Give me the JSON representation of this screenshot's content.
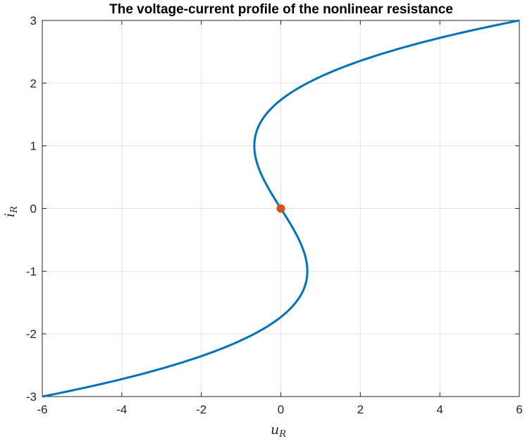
{
  "chart_data": {
    "type": "line",
    "title": "The voltage-current profile of the nonlinear resistance",
    "xlabel": {
      "main": "u",
      "sub": "R"
    },
    "ylabel": {
      "main": "i",
      "sub": "R"
    },
    "xlim": [
      -6,
      6
    ],
    "ylim": [
      -3,
      3
    ],
    "xticks": [
      -6,
      -4,
      -2,
      0,
      2,
      4,
      6
    ],
    "yticks": [
      -3,
      -2,
      -1,
      0,
      1,
      2,
      3
    ],
    "grid": true,
    "curve": {
      "relation": "u = i^3/3 - i",
      "i_range": [
        -3,
        3
      ],
      "color": "#0072BD",
      "sample_points": [
        {
          "i": -3,
          "u": -6
        },
        {
          "i": -2,
          "u": -0.667
        },
        {
          "i": -1,
          "u": 0.667
        },
        {
          "i": 0,
          "u": 0
        },
        {
          "i": 1,
          "u": -0.667
        },
        {
          "i": 2,
          "u": 0.667
        },
        {
          "i": 3,
          "u": 6
        }
      ]
    },
    "marker": {
      "x": 0,
      "y": 0,
      "color": "#D95319"
    }
  }
}
